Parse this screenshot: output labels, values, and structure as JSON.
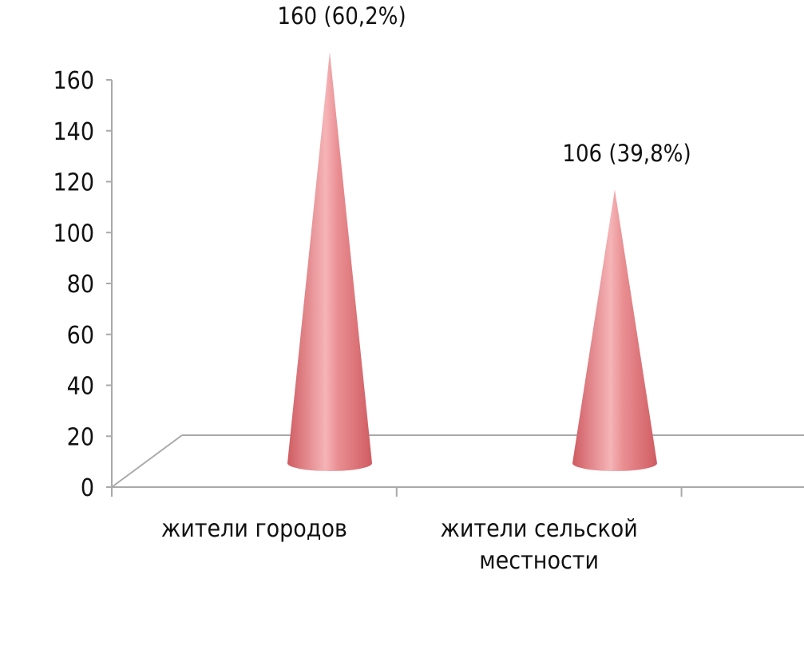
{
  "chart_data": {
    "type": "bar",
    "style": "3d-cone",
    "categories": [
      [
        "жители городов"
      ],
      [
        "жители сельской",
        "местности"
      ]
    ],
    "values": [
      160,
      106
    ],
    "data_labels": [
      "160 (60,2%)",
      "106 (39,8%)"
    ],
    "y_ticks": [
      "0",
      "20",
      "40",
      "60",
      "80",
      "100",
      "120",
      "140",
      "160"
    ],
    "ylim": [
      0,
      160
    ],
    "grid": false,
    "legend": "none",
    "colors": {
      "cone_dark": "#cf5c62",
      "cone_mid": "#e98e92",
      "cone_light": "#f5b4b6",
      "axis": "#a9a9a9"
    }
  }
}
